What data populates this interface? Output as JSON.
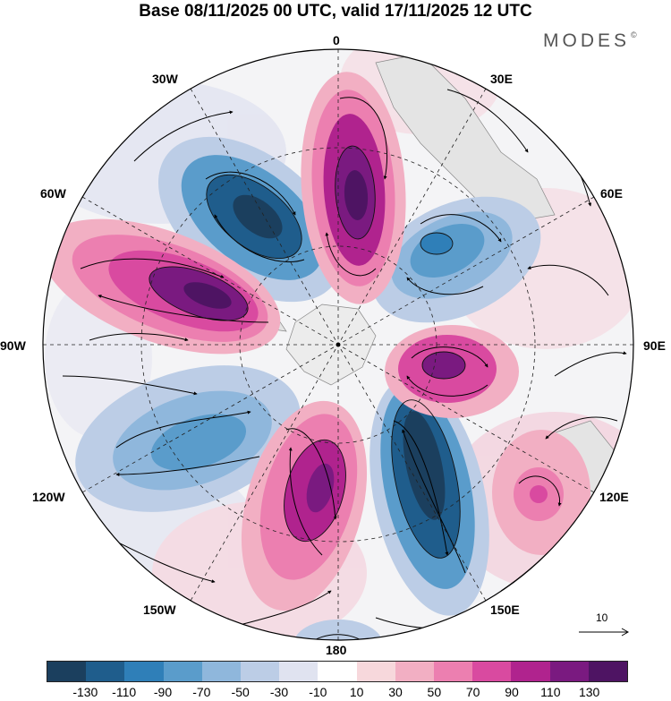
{
  "title": "Base 08/11/2025 00 UTC, valid 17/11/2025 12 UTC",
  "logo": "MODES",
  "logo_mark": "©",
  "longitude_labels": {
    "top": "0",
    "top_right": "30E",
    "upper_right": "60E",
    "right": "90E",
    "lower_right": "120E",
    "bottom_right": "150E",
    "bottom": "180",
    "bottom_left": "150W",
    "lower_left": "120W",
    "left": "90W",
    "upper_left": "60W",
    "top_left": "30W"
  },
  "vector_reference": "10",
  "colorbar": {
    "ticks": [
      "-130",
      "-110",
      "-90",
      "-70",
      "-50",
      "-30",
      "-10",
      "10",
      "30",
      "50",
      "70",
      "90",
      "110",
      "130"
    ],
    "colors": [
      "#1b3f5e",
      "#1f5d8c",
      "#2f7fb8",
      "#5a9ccb",
      "#8fb7dc",
      "#bccde6",
      "#e0e3f0",
      "#ffffff",
      "#f7d8dc",
      "#f2afc3",
      "#ec7fb0",
      "#d94aa0",
      "#b0238e",
      "#7a1a80",
      "#4e1463"
    ]
  }
}
